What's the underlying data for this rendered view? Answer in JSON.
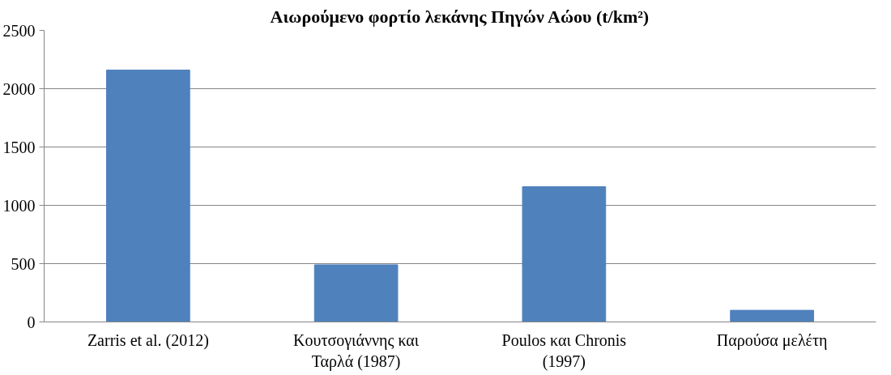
{
  "chart_data": {
    "type": "bar",
    "title": "Αιωρούμενο φορτίο λεκάνης Πηγών Αώου (t/km²)",
    "categories": [
      "Zarris et al. (2012)",
      "Κουτσογιάννης και Ταρλά (1987)",
      "Poulos και Chronis (1997)",
      "Παρούσα μελέτη"
    ],
    "values": [
      2160,
      490,
      1160,
      100
    ],
    "color": "#4f81bd",
    "ylim": [
      0,
      2500
    ],
    "yticks": [
      0,
      500,
      1000,
      1500,
      2000,
      2500
    ],
    "grid": "y"
  }
}
